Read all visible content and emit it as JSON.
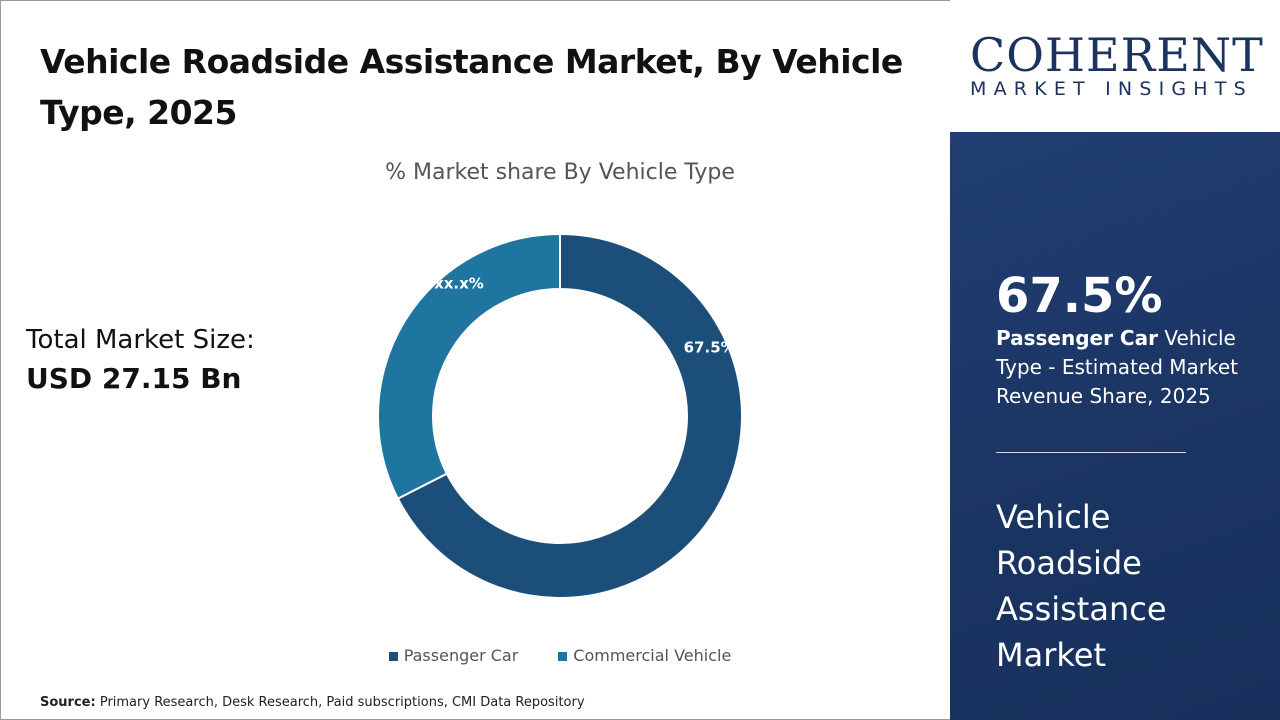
{
  "title": "Vehicle Roadside Assistance Market, By Vehicle Type, 2025",
  "total_market": {
    "label": "Total Market Size:",
    "value": "USD 27.15 Bn"
  },
  "source": {
    "label": "Source:",
    "text": "Primary Research, Desk Research, Paid subscriptions, CMI Data Repository"
  },
  "logo": {
    "line1": "COHERENT",
    "line2": "MARKET INSIGHTS"
  },
  "panel": {
    "percent": "67.5%",
    "desc_bold": "Passenger Car",
    "desc_rest": " Vehicle Type - Estimated Market Revenue Share, 2025",
    "market_name": "Vehicle Roadside Assistance Market"
  },
  "colors": {
    "passenger_car": "#1b4f7a",
    "commercial_vehicle": "#1e76a0",
    "panel": "#1c3664"
  },
  "chart_data": {
    "type": "pie",
    "donut": true,
    "title": "% Market share By Vehicle Type",
    "categories": [
      "Passenger Car",
      "Commercial Vehicle"
    ],
    "values": [
      67.5,
      32.5
    ],
    "data_labels": [
      "67.5%",
      "xx.x%"
    ],
    "legend_placement": "bottom"
  }
}
